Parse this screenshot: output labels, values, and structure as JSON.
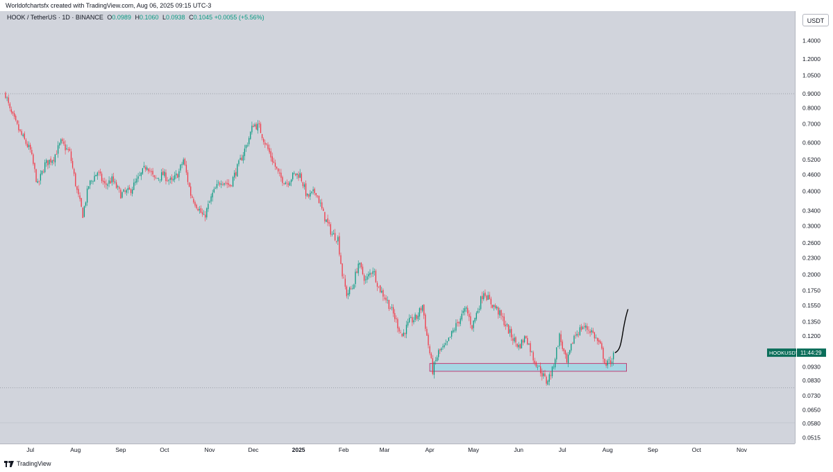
{
  "header": {
    "credit": "Worldofchartsfx created with TradingView.com, Aug 06, 2025 09:15 UTC-3"
  },
  "legend": {
    "symbol": "HOOK / TetherUS · 1D · BINANCE",
    "open_label": "O",
    "open": "0.0989",
    "high_label": "H",
    "high": "0.1060",
    "low_label": "L",
    "low": "0.0938",
    "close_label": "C",
    "close": "0.1045",
    "change": "+0.0055 (+5.56%)"
  },
  "currency": "USDT",
  "last_price_tag": {
    "symbol": "HOOKUSDT",
    "countdown": "11:44:29"
  },
  "footer": {
    "brand": "TradingView"
  },
  "colors": {
    "up": "#089981",
    "down": "#f23645",
    "background": "#d1d4dc",
    "zone_fill": "#a6d6e3",
    "zone_border": "#c2185b",
    "tag_bg": "#0b6e5a"
  },
  "chart_data": {
    "type": "candlestick",
    "title": "HOOK / TetherUS · 1D · BINANCE",
    "y_scale": "log",
    "y_ticks": [
      "1.4000",
      "1.2000",
      "1.0500",
      "0.9000",
      "0.8000",
      "0.7000",
      "0.6000",
      "0.5200",
      "0.4600",
      "0.4000",
      "0.3400",
      "0.3000",
      "0.2600",
      "0.2300",
      "0.2000",
      "0.1750",
      "0.1550",
      "0.1350",
      "0.1200",
      "0.0930",
      "0.0830",
      "0.0730",
      "0.0650",
      "0.0580",
      "0.0515"
    ],
    "x_ticks": [
      "Jul",
      "Aug",
      "Sep",
      "Oct",
      "Nov",
      "Dec",
      "2025",
      "Feb",
      "Mar",
      "Apr",
      "May",
      "Jun",
      "Jul",
      "Aug",
      "Sep",
      "Oct",
      "Nov"
    ],
    "x_tick_days": [
      17,
      48,
      79,
      109,
      140,
      170,
      201,
      232,
      260,
      291,
      321,
      352,
      382,
      413,
      444,
      474,
      505
    ],
    "start_date": "2024-06-14",
    "horizontal_levels": [
      0.9,
      0.078
    ],
    "support_zone": {
      "low": 0.0895,
      "high": 0.0955,
      "from_day": 291,
      "to_day": 426
    },
    "projection": {
      "from_day": 418,
      "from_price": 0.1045,
      "to_day": 427,
      "to_price": 0.15
    },
    "ohlc_anchors": [
      {
        "day": 0,
        "price": 0.9
      },
      {
        "day": 3,
        "price": 0.78
      },
      {
        "day": 10,
        "price": 0.65
      },
      {
        "day": 17,
        "price": 0.56
      },
      {
        "day": 22,
        "price": 0.42
      },
      {
        "day": 27,
        "price": 0.5
      },
      {
        "day": 33,
        "price": 0.53
      },
      {
        "day": 38,
        "price": 0.6
      },
      {
        "day": 44,
        "price": 0.55
      },
      {
        "day": 49,
        "price": 0.4
      },
      {
        "day": 53,
        "price": 0.33
      },
      {
        "day": 57,
        "price": 0.42
      },
      {
        "day": 63,
        "price": 0.47
      },
      {
        "day": 68,
        "price": 0.42
      },
      {
        "day": 73,
        "price": 0.44
      },
      {
        "day": 79,
        "price": 0.39
      },
      {
        "day": 85,
        "price": 0.4
      },
      {
        "day": 92,
        "price": 0.45
      },
      {
        "day": 97,
        "price": 0.5
      },
      {
        "day": 102,
        "price": 0.44
      },
      {
        "day": 108,
        "price": 0.46
      },
      {
        "day": 114,
        "price": 0.43
      },
      {
        "day": 119,
        "price": 0.47
      },
      {
        "day": 122,
        "price": 0.52
      },
      {
        "day": 127,
        "price": 0.39
      },
      {
        "day": 132,
        "price": 0.35
      },
      {
        "day": 136,
        "price": 0.32
      },
      {
        "day": 142,
        "price": 0.39
      },
      {
        "day": 148,
        "price": 0.44
      },
      {
        "day": 154,
        "price": 0.42
      },
      {
        "day": 160,
        "price": 0.5
      },
      {
        "day": 166,
        "price": 0.6
      },
      {
        "day": 170,
        "price": 0.7
      },
      {
        "day": 174,
        "price": 0.68
      },
      {
        "day": 178,
        "price": 0.6
      },
      {
        "day": 183,
        "price": 0.52
      },
      {
        "day": 188,
        "price": 0.45
      },
      {
        "day": 193,
        "price": 0.43
      },
      {
        "day": 198,
        "price": 0.46
      },
      {
        "day": 202,
        "price": 0.46
      },
      {
        "day": 207,
        "price": 0.38
      },
      {
        "day": 213,
        "price": 0.4
      },
      {
        "day": 218,
        "price": 0.33
      },
      {
        "day": 224,
        "price": 0.28
      },
      {
        "day": 228,
        "price": 0.27
      },
      {
        "day": 231,
        "price": 0.2
      },
      {
        "day": 234,
        "price": 0.17
      },
      {
        "day": 238,
        "price": 0.18
      },
      {
        "day": 242,
        "price": 0.22
      },
      {
        "day": 247,
        "price": 0.19
      },
      {
        "day": 252,
        "price": 0.21
      },
      {
        "day": 256,
        "price": 0.18
      },
      {
        "day": 262,
        "price": 0.16
      },
      {
        "day": 267,
        "price": 0.14
      },
      {
        "day": 272,
        "price": 0.12
      },
      {
        "day": 277,
        "price": 0.135
      },
      {
        "day": 282,
        "price": 0.14
      },
      {
        "day": 286,
        "price": 0.155
      },
      {
        "day": 289,
        "price": 0.12
      },
      {
        "day": 293,
        "price": 0.09
      },
      {
        "day": 297,
        "price": 0.105
      },
      {
        "day": 302,
        "price": 0.11
      },
      {
        "day": 307,
        "price": 0.125
      },
      {
        "day": 312,
        "price": 0.14
      },
      {
        "day": 316,
        "price": 0.15
      },
      {
        "day": 320,
        "price": 0.13
      },
      {
        "day": 324,
        "price": 0.15
      },
      {
        "day": 328,
        "price": 0.175
      },
      {
        "day": 332,
        "price": 0.16
      },
      {
        "day": 337,
        "price": 0.15
      },
      {
        "day": 342,
        "price": 0.135
      },
      {
        "day": 347,
        "price": 0.12
      },
      {
        "day": 352,
        "price": 0.11
      },
      {
        "day": 357,
        "price": 0.12
      },
      {
        "day": 362,
        "price": 0.1
      },
      {
        "day": 367,
        "price": 0.09
      },
      {
        "day": 371,
        "price": 0.082
      },
      {
        "day": 375,
        "price": 0.09
      },
      {
        "day": 380,
        "price": 0.12
      },
      {
        "day": 385,
        "price": 0.095
      },
      {
        "day": 390,
        "price": 0.12
      },
      {
        "day": 396,
        "price": 0.13
      },
      {
        "day": 402,
        "price": 0.125
      },
      {
        "day": 408,
        "price": 0.11
      },
      {
        "day": 412,
        "price": 0.094
      },
      {
        "day": 416,
        "price": 0.0989
      }
    ],
    "last_candle": {
      "open": 0.0989,
      "high": 0.106,
      "low": 0.0938,
      "close": 0.1045
    }
  }
}
